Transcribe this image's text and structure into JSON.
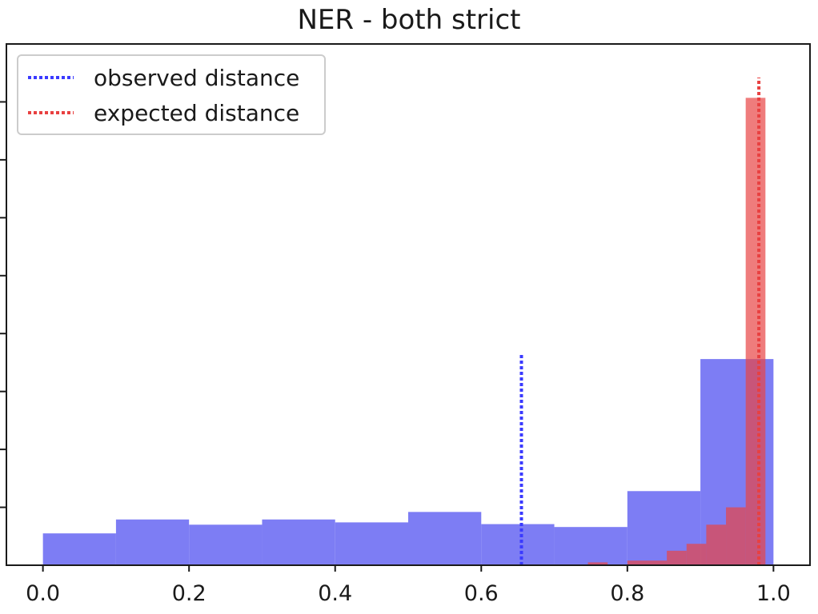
{
  "chart_data": {
    "type": "histogram",
    "title": "NER - both strict",
    "xlabel": "",
    "ylabel": "",
    "xlim": [
      -0.05,
      1.05
    ],
    "ylim": [
      0,
      9.0
    ],
    "x_ticks": [
      "0.0",
      "0.2",
      "0.4",
      "0.6",
      "0.8",
      "1.0"
    ],
    "x_tick_values": [
      0.0,
      0.2,
      0.4,
      0.6,
      0.8,
      1.0
    ],
    "y_tick_values": [
      1,
      2,
      3,
      4,
      5,
      6,
      7,
      8
    ],
    "grid": false,
    "legend": {
      "position": "top-left",
      "entries": [
        {
          "label": "observed distance",
          "color": "#3a3aff",
          "style": "dotted"
        },
        {
          "label": "expected distance",
          "color": "#e84040",
          "style": "dotted"
        }
      ]
    },
    "series": [
      {
        "color": "#6b6bf2",
        "opacity": 0.88,
        "bins": [
          {
            "x0": 0.0,
            "x1": 0.1,
            "value": 0.55
          },
          {
            "x0": 0.1,
            "x1": 0.2,
            "value": 0.79
          },
          {
            "x0": 0.2,
            "x1": 0.3,
            "value": 0.7
          },
          {
            "x0": 0.3,
            "x1": 0.4,
            "value": 0.79
          },
          {
            "x0": 0.4,
            "x1": 0.5,
            "value": 0.74
          },
          {
            "x0": 0.5,
            "x1": 0.6,
            "value": 0.92
          },
          {
            "x0": 0.6,
            "x1": 0.7,
            "value": 0.71
          },
          {
            "x0": 0.7,
            "x1": 0.8,
            "value": 0.66
          },
          {
            "x0": 0.8,
            "x1": 0.9,
            "value": 1.28
          },
          {
            "x0": 0.9,
            "x1": 1.0,
            "value": 3.56
          }
        ]
      },
      {
        "color": "#e84545",
        "opacity": 0.7,
        "bins": [
          {
            "x0": 0.746,
            "x1": 0.773,
            "value": 0.05
          },
          {
            "x0": 0.8,
            "x1": 0.827,
            "value": 0.08
          },
          {
            "x0": 0.827,
            "x1": 0.854,
            "value": 0.08
          },
          {
            "x0": 0.854,
            "x1": 0.881,
            "value": 0.25
          },
          {
            "x0": 0.881,
            "x1": 0.908,
            "value": 0.37
          },
          {
            "x0": 0.908,
            "x1": 0.935,
            "value": 0.7
          },
          {
            "x0": 0.935,
            "x1": 0.962,
            "value": 1.0
          },
          {
            "x0": 0.962,
            "x1": 0.989,
            "value": 8.07
          }
        ]
      }
    ],
    "vlines": [
      {
        "label": "observed distance",
        "x": 0.655,
        "y_top": 3.67,
        "color": "#3a3aff"
      },
      {
        "label": "expected distance",
        "x": 0.98,
        "y_top": 8.42,
        "color": "#e84040"
      }
    ]
  }
}
